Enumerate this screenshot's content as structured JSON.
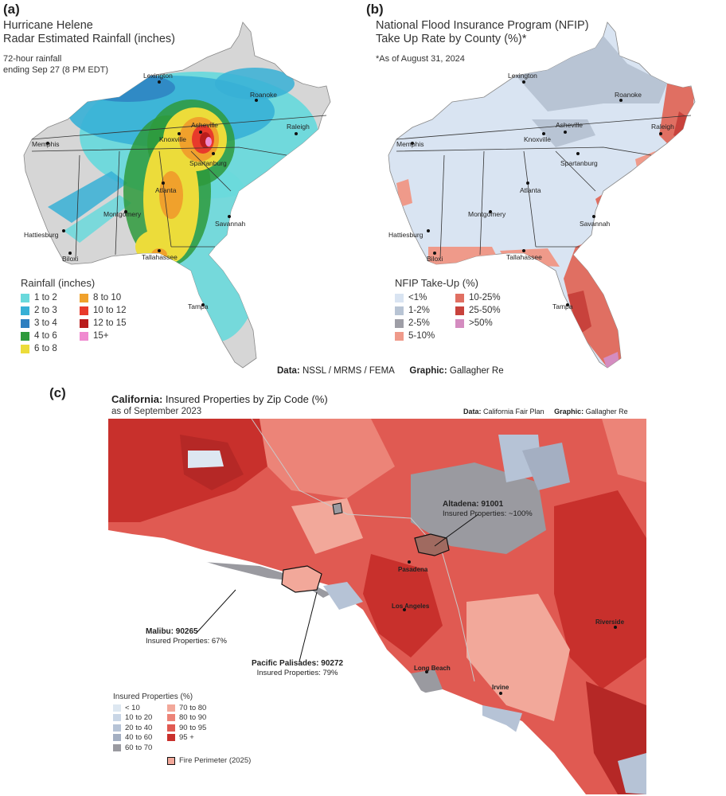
{
  "panel_a": {
    "label": "(a)",
    "title_line1": "Hurricane Helene",
    "title_line2": "Radar Estimated Rainfall (inches)",
    "subtitle_line1": "72-hour rainfall",
    "subtitle_line2": "ending Sep 27 (8 PM EDT)",
    "cities": [
      "Lexington",
      "Roanoke",
      "Memphis",
      "Knoxville",
      "Asheville",
      "Raleigh",
      "Spartanburg",
      "Atlanta",
      "Montgomery",
      "Savannah",
      "Hattiesburg",
      "Biloxi",
      "Tallahassee",
      "Tampa"
    ],
    "legend_title": "Rainfall (inches)",
    "legend": [
      {
        "label": "1 to 2",
        "color": "#6ad9dc"
      },
      {
        "label": "2 to 3",
        "color": "#37b0d6"
      },
      {
        "label": "3 to 4",
        "color": "#2d7fc0"
      },
      {
        "label": "4 to 6",
        "color": "#2e9a3c"
      },
      {
        "label": "6 to 8",
        "color": "#ecdc3a"
      },
      {
        "label": "8 to 10",
        "color": "#f0a12c"
      },
      {
        "label": "10 to 12",
        "color": "#e83a2b"
      },
      {
        "label": "12 to 15",
        "color": "#b91c1c"
      },
      {
        "label": "15+",
        "color": "#f08ad0"
      }
    ]
  },
  "panel_b": {
    "label": "(b)",
    "title_line1": "National Flood Insurance Program (NFIP)",
    "title_line2": "Take Up Rate by County (%)*",
    "note": "*As of August 31, 2024",
    "cities": [
      "Lexington",
      "Roanoke",
      "Memphis",
      "Asheville",
      "Knoxville",
      "Raleigh",
      "Spartanburg",
      "Atlanta",
      "Montgomery",
      "Savannah",
      "Hattiesburg",
      "Biloxi",
      "Tallahassee",
      "Tampa"
    ],
    "legend_title": "NFIP Take-Up (%)",
    "legend": [
      {
        "label": "<1%",
        "color": "#d9e4f2"
      },
      {
        "label": "1-2%",
        "color": "#b8c4d4"
      },
      {
        "label": "2-5%",
        "color": "#9e9ea6"
      },
      {
        "label": "5-10%",
        "color": "#ef9a8a"
      },
      {
        "label": "10-25%",
        "color": "#e06f62"
      },
      {
        "label": "25-50%",
        "color": "#c8423c"
      },
      {
        "label": ">50%",
        "color": "#d48cc0"
      }
    ]
  },
  "credits_ab": {
    "data_label": "Data:",
    "data_value": "NSSL / MRMS / FEMA",
    "graphic_label": "Graphic:",
    "graphic_value": "Gallagher Re"
  },
  "panel_c": {
    "label": "(c)",
    "title_bold": "California:",
    "title_rest": " Insured Properties by Zip Code (%)",
    "subtitle": "as of September 2023",
    "data_label": "Data:",
    "data_value": "California Fair Plan",
    "graphic_label": "Graphic:",
    "graphic_value": "Gallagher Re",
    "cities": [
      "Pasadena",
      "Los Angeles",
      "Long Beach",
      "Irvine",
      "Riverside"
    ],
    "callouts": [
      {
        "name": "Altadena: 91001",
        "value": "Insured Properties: ~100%"
      },
      {
        "name": "Malibu: 90265",
        "value": "Insured Properties: 67%"
      },
      {
        "name": "Pacific Palisades: 90272",
        "value": "Insured Properties: 79%"
      }
    ],
    "legend_title": "Insured Properties (%)",
    "legend": [
      {
        "label": "< 10",
        "color": "#dde7f1"
      },
      {
        "label": "10 to 20",
        "color": "#c9d6e6"
      },
      {
        "label": "20 to 40",
        "color": "#b6c3d6"
      },
      {
        "label": "40 to 60",
        "color": "#a4afc2"
      },
      {
        "label": "60 to 70",
        "color": "#9a9aa0"
      },
      {
        "label": "70 to 80",
        "color": "#f2a89a"
      },
      {
        "label": "80 to 90",
        "color": "#ec8478"
      },
      {
        "label": "90 to 95",
        "color": "#e05a52"
      },
      {
        "label": "95 +",
        "color": "#c8302c"
      }
    ],
    "fire_label": "Fire Perimeter (2025)"
  }
}
